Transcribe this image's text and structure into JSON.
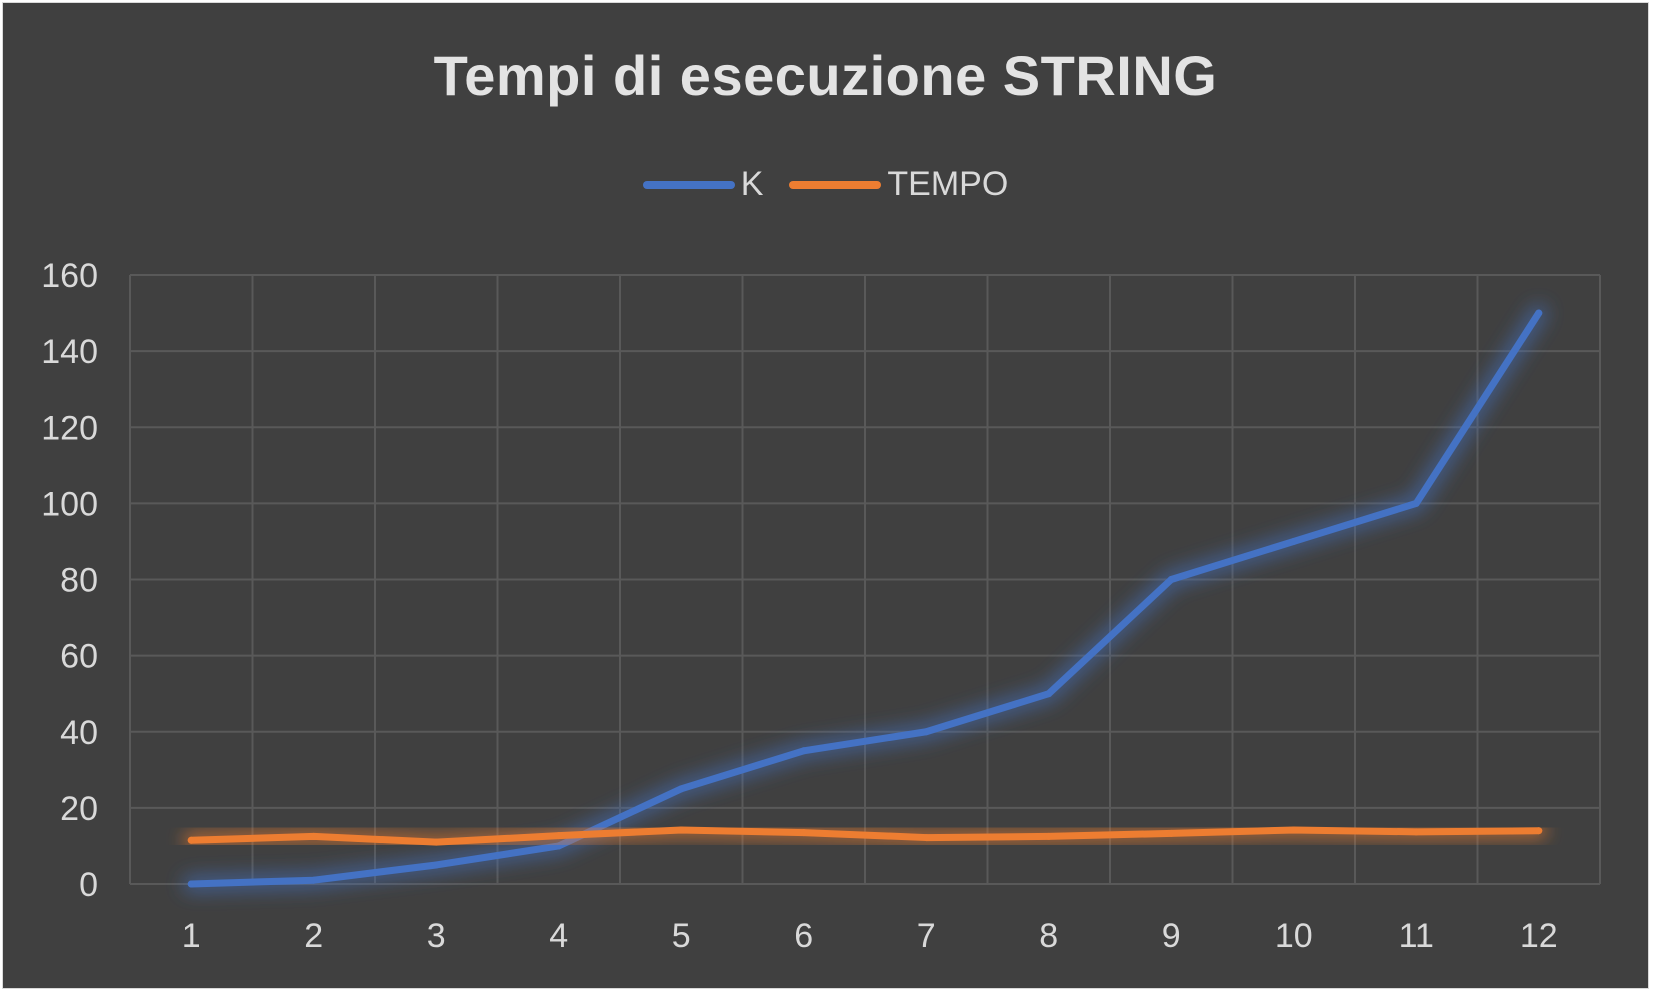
{
  "chart_data": {
    "type": "line",
    "title": "Tempi di esecuzione STRING",
    "xlabel": "",
    "ylabel": "",
    "categories": [
      "1",
      "2",
      "3",
      "4",
      "5",
      "6",
      "7",
      "8",
      "9",
      "10",
      "11",
      "12"
    ],
    "ylim": [
      0,
      160
    ],
    "yticks": [
      "0",
      "20",
      "40",
      "60",
      "80",
      "100",
      "120",
      "140",
      "160"
    ],
    "grid": true,
    "legend_position": "top",
    "series": [
      {
        "name": "K",
        "color": "#4472c4",
        "values": [
          0,
          1,
          5,
          10,
          25,
          35,
          40,
          50,
          80,
          90,
          100,
          150
        ]
      },
      {
        "name": "TEMPO",
        "color": "#ed7d31",
        "values": [
          11.5,
          12.5,
          11,
          12.7,
          14.2,
          13.5,
          12.2,
          12.5,
          13.3,
          14.2,
          13.7,
          14
        ]
      }
    ]
  },
  "colors": {
    "background": "#404040",
    "gridline": "#595959",
    "text": "#d9d9d9"
  }
}
